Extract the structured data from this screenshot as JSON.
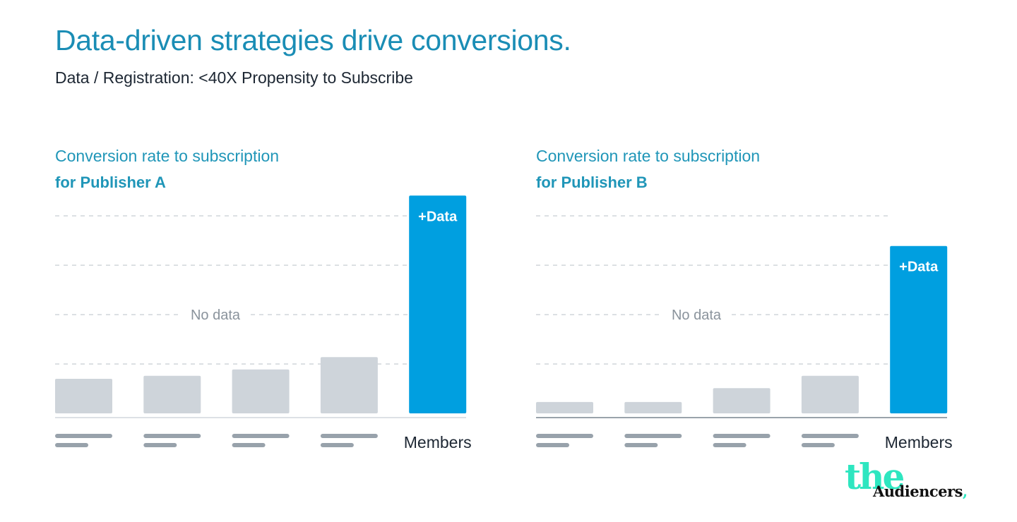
{
  "header": {
    "title": "Data-driven strategies drive conversions.",
    "subtitle": "Data / Registration: <40X Propensity to Subscribe"
  },
  "colors": {
    "title": "#1a8db5",
    "highlight_bar": "#009fe0",
    "placeholder_bar": "#ced4da",
    "grid": "#c8cdd2",
    "placeholder_label": "#98a2ab"
  },
  "chart_data": [
    {
      "type": "bar",
      "title": "Conversion rate to subscription",
      "subtitle": "for Publisher A",
      "categories": [
        "",
        "",
        "",
        "",
        "Members"
      ],
      "values": [
        0.7,
        0.76,
        0.89,
        1.14,
        4.41
      ],
      "bar_labels": [
        "",
        "",
        "",
        "",
        "+Data"
      ],
      "annotation": "No data",
      "ylim": [
        0,
        4.5
      ],
      "grid": true,
      "gridlines": [
        1,
        2,
        3,
        4
      ]
    },
    {
      "type": "bar",
      "title": "Conversion rate to subscription",
      "subtitle": "for Publisher B",
      "categories": [
        "",
        "",
        "",
        "",
        "Members"
      ],
      "values": [
        0.23,
        0.23,
        0.51,
        0.76,
        3.39
      ],
      "bar_labels": [
        "",
        "",
        "",
        "",
        "+Data"
      ],
      "annotation": "No data",
      "ylim": [
        0,
        4.5
      ],
      "grid": true,
      "gridlines": [
        1,
        2,
        3,
        4
      ]
    }
  ],
  "logo": {
    "text_top": "the",
    "text_bottom": "Audiencers",
    "punct": ","
  }
}
